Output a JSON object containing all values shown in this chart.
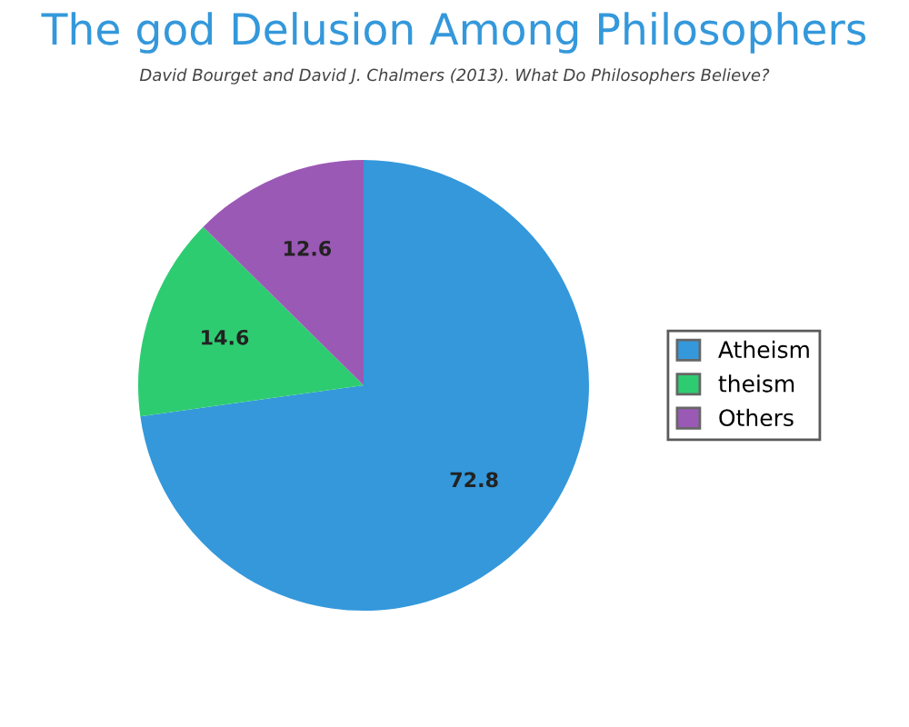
{
  "chart_data": {
    "type": "pie",
    "title": "The god Delusion Among Philosophers",
    "subtitle": "David Bourget and David J. Chalmers (2013). What Do Philosophers Believe?",
    "categories": [
      "Atheism",
      "theism",
      "Others"
    ],
    "values": [
      72.8,
      14.6,
      12.6
    ],
    "colors": [
      "#3498db",
      "#2ecc71",
      "#9b59b6"
    ],
    "data_labels": true,
    "legend": "right"
  }
}
